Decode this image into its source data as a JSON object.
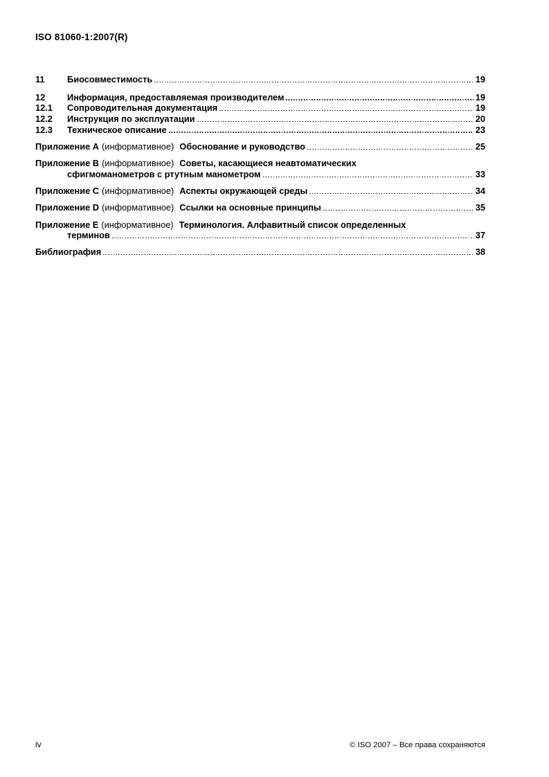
{
  "page": {
    "doc_code": "ISO 81060-1:2007(R)",
    "footer_page_number": "iv",
    "footer_copyright": "© ISO 2007 – Все права сохраняются"
  },
  "toc": {
    "entries": [
      {
        "num": "11",
        "title": "Биосовместимость",
        "page": "19"
      },
      {
        "num": "12",
        "title": "Информация, предоставляемая производителем",
        "page": "19"
      },
      {
        "num": "12.1",
        "title": "Сопроводительная документация",
        "page": "19"
      },
      {
        "num": "12.2",
        "title": "Инструкция по эксплуатации",
        "page": "20"
      },
      {
        "num": "12.3",
        "title": "Техническое описание",
        "page": "23"
      }
    ],
    "annexes": [
      {
        "label": "Приложение A",
        "type": "(информативное)",
        "title": "Обоснование и руководство",
        "page": "25"
      },
      {
        "label": "Приложение B",
        "type": "(информативное)",
        "title": "Советы, касающиеся неавтоматических",
        "title2": "сфигмоманометров с ртутным манометром",
        "page": "33"
      },
      {
        "label": "Приложение C",
        "type": "(информативное)",
        "title": "Аспекты окружающей среды",
        "page": "34"
      },
      {
        "label": "Приложение D",
        "type": "(информативное)",
        "title": "Ссылки на основные принципы",
        "page": "35"
      },
      {
        "label": "Приложение E",
        "type": "(информативное)",
        "title": "Терминология. Алфавитный список определенных",
        "title2": "терминов",
        "page": "37"
      }
    ],
    "bibliography": {
      "title": "Библиография",
      "page": "38"
    }
  }
}
